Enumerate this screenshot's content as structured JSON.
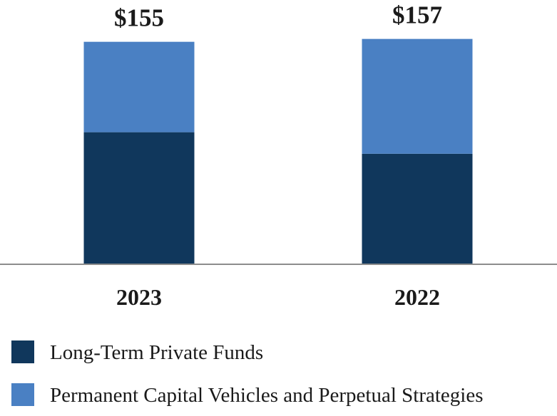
{
  "chart_data": {
    "type": "bar",
    "stacked": true,
    "title": "",
    "xlabel": "",
    "ylabel": "",
    "categories": [
      "2023",
      "2022"
    ],
    "totals": [
      "$155",
      "$157"
    ],
    "total_values": [
      155,
      157
    ],
    "series": [
      {
        "name": "Long-Term Private Funds",
        "values": [
          92,
          77
        ],
        "color": "#10375c"
      },
      {
        "name": "Permanent Capital Vehicles and Perpetual Strategies",
        "values": [
          63,
          80
        ],
        "color": "#4a80c3"
      }
    ],
    "ylim": [
      0,
      160
    ],
    "grid": false,
    "legend_position": "bottom-left",
    "axis_color": "#8c8c8c"
  }
}
